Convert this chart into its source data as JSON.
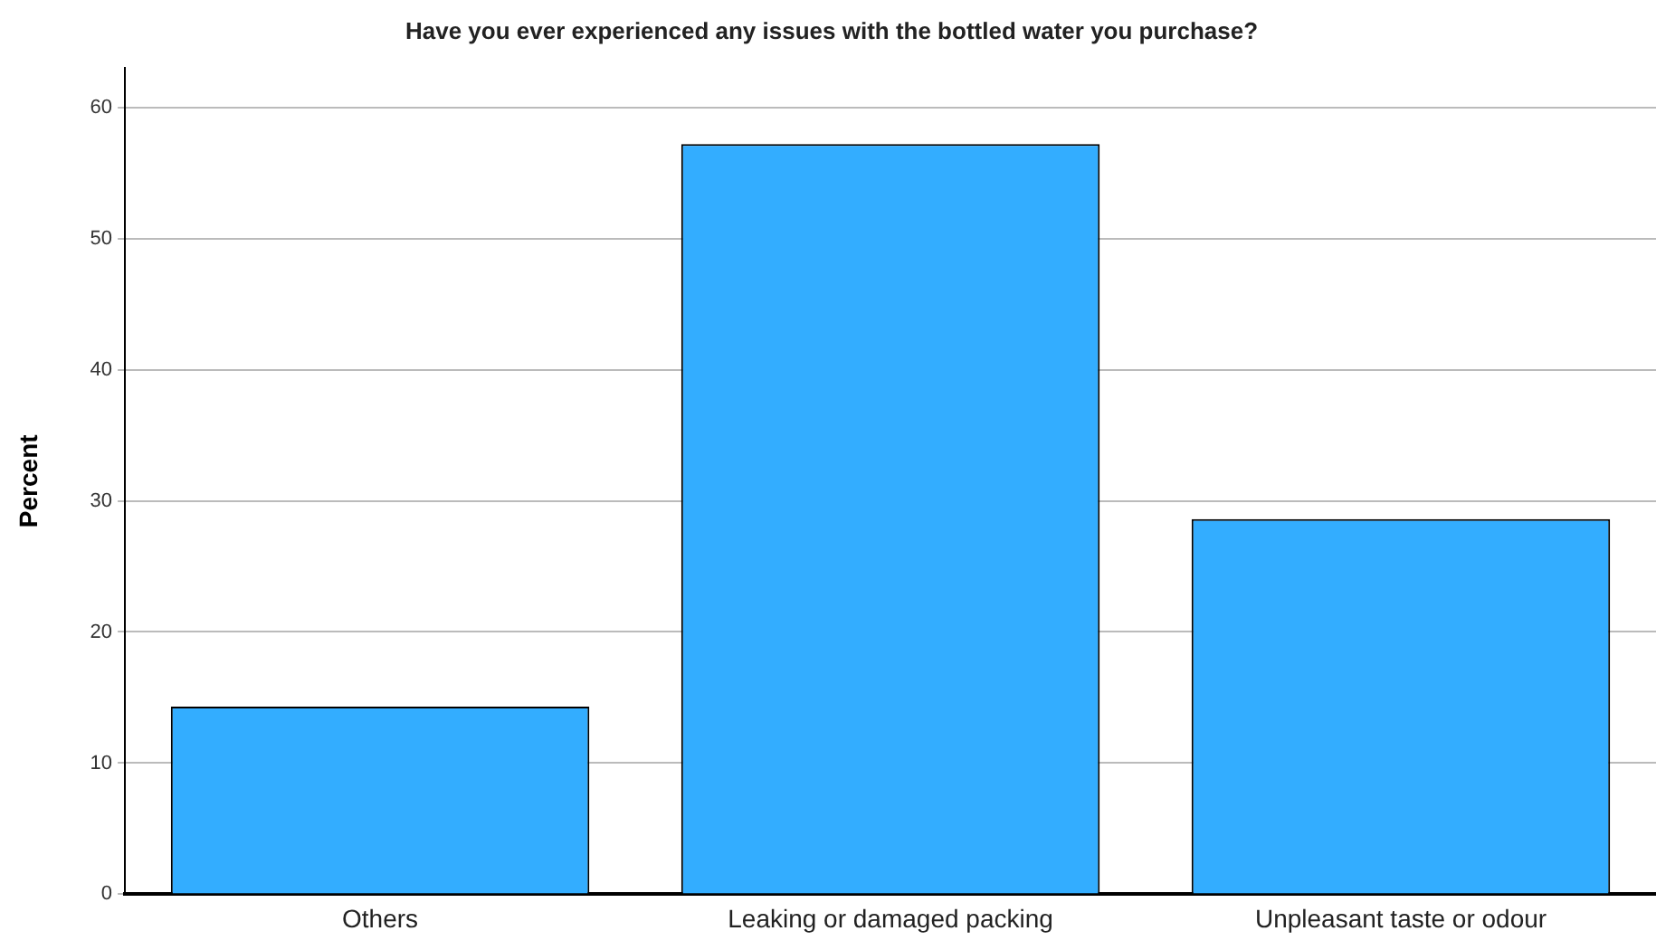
{
  "chart_data": {
    "type": "bar",
    "title": "Have you ever experienced any issues with the bottled water you purchase?",
    "ylabel": "Percent",
    "categories": [
      "Others",
      "Leaking or damaged packing",
      "Unpleasant taste or odour"
    ],
    "values": [
      14.3,
      57.2,
      28.6
    ],
    "color": "#33adff",
    "ylim": [
      0,
      63
    ],
    "yticks": [
      0,
      10,
      20,
      30,
      40,
      50,
      60
    ],
    "grid": "y",
    "legend": false
  }
}
